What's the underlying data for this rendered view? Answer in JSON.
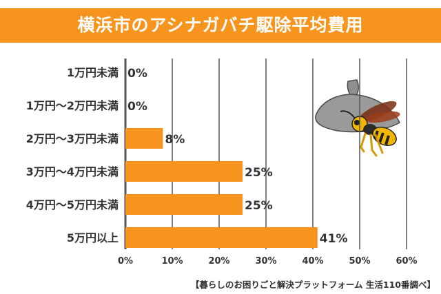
{
  "title": "横浜市のアシナガバチ駆除平均費用",
  "source": "【暮らしのお困りごと解決プラットフォーム 生活110番調べ】",
  "colors": {
    "bar": "#f7941d",
    "banner": "#f7941d",
    "grid": "#555555",
    "text": "#333333"
  },
  "illustration": "wasp-and-nest",
  "chart_data": {
    "type": "bar",
    "orientation": "horizontal",
    "categories": [
      "1万円未満",
      "1万円～2万円未満",
      "2万円～3万円未満",
      "3万円～4万円未満",
      "4万円～5万円未満",
      "5万円以上"
    ],
    "values": [
      0,
      0,
      8,
      25,
      25,
      41
    ],
    "data_labels": [
      "0%",
      "0%",
      "8%",
      "25%",
      "25%",
      "41%"
    ],
    "ticks": [
      "0%",
      "10%",
      "20%",
      "30%",
      "40%",
      "50%",
      "60%"
    ],
    "xlim": [
      0,
      60
    ],
    "title": "横浜市のアシナガバチ駆除平均費用",
    "xlabel": "",
    "ylabel": "",
    "grid": true
  }
}
